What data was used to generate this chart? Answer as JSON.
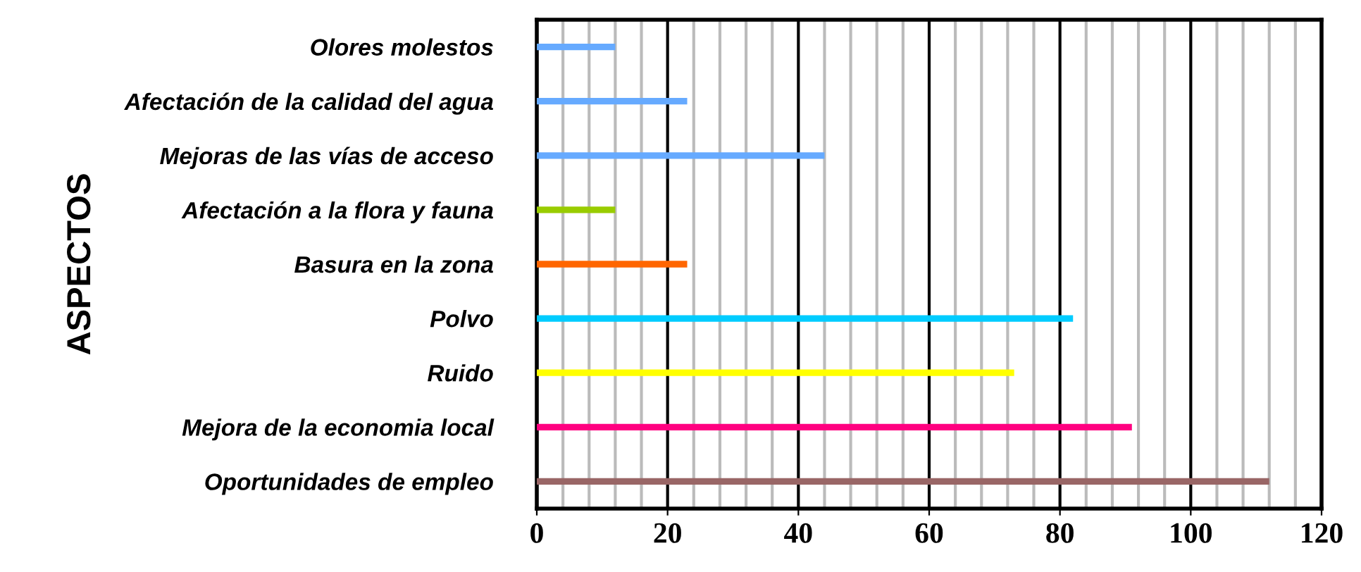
{
  "chart_data": {
    "type": "bar",
    "orientation": "horizontal",
    "ylabel": "ASPECTOS",
    "categories": [
      "Olores molestos",
      "Afectación de la calidad del agua",
      "Mejoras de las vías de acceso",
      "Afectación a la flora y fauna",
      "Basura en la zona",
      "Polvo",
      "Ruido",
      "Mejora de la economia local",
      "Oportunidades de empleo"
    ],
    "values": [
      12,
      23,
      44,
      12,
      23,
      82,
      73,
      91,
      112
    ],
    "colors": [
      "#66aaff",
      "#66aaff",
      "#66aaff",
      "#99cc00",
      "#ff6600",
      "#00ccff",
      "#ffff00",
      "#ff0080",
      "#996666"
    ],
    "xlim": [
      0,
      120
    ],
    "xticks": [
      0,
      20,
      40,
      60,
      80,
      100,
      120
    ],
    "grid": "x"
  }
}
